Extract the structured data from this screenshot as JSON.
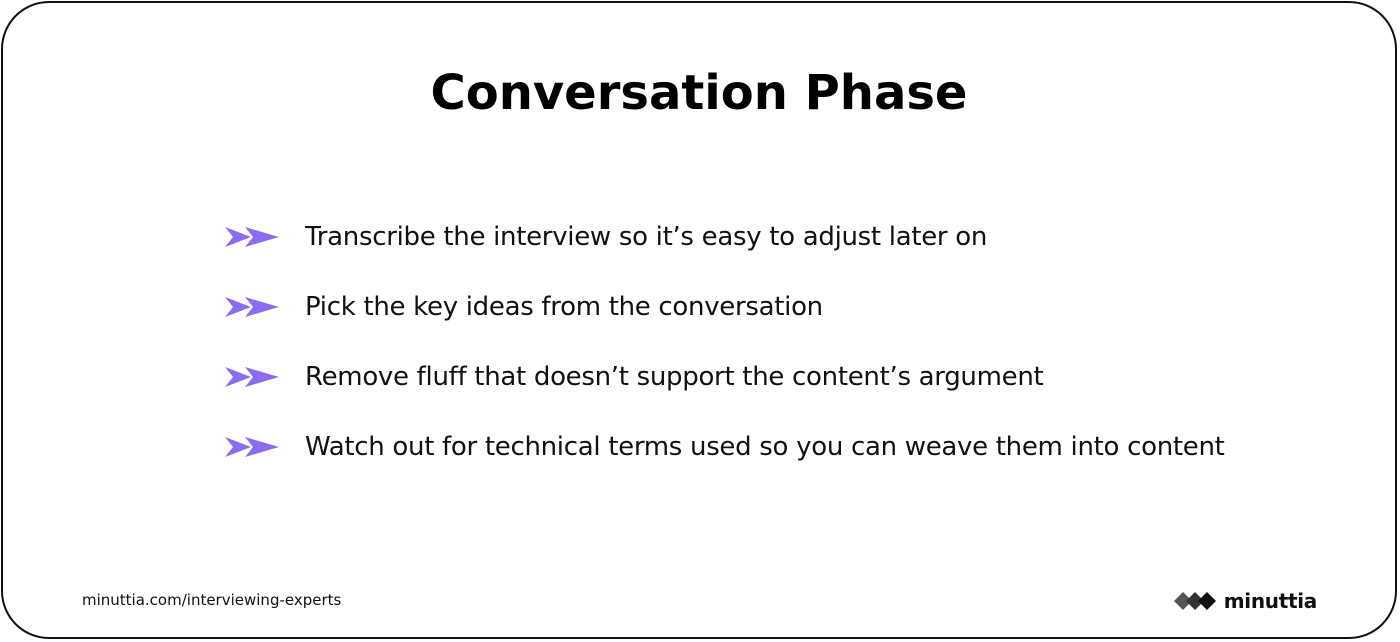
{
  "slide": {
    "title": "Conversation Phase",
    "bullets": [
      {
        "icon": "double-arrow-icon",
        "text": "Transcribe the interview so it’s easy to adjust later on"
      },
      {
        "icon": "double-arrow-icon",
        "text": "Pick the key ideas from the conversation"
      },
      {
        "icon": "double-arrow-icon",
        "text": "Remove fluff that doesn’t support the content’s argument"
      },
      {
        "icon": "double-arrow-icon",
        "text": "Watch out for technical terms used so you can weave them into content"
      }
    ]
  },
  "footer": {
    "url": "minuttia.com/interviewing-experts",
    "brand_name": "minuttia",
    "brand_icon": "minuttia-logo-icon"
  },
  "colors": {
    "accent": "#8B6CF0",
    "text": "#111111",
    "border": "#111111"
  }
}
